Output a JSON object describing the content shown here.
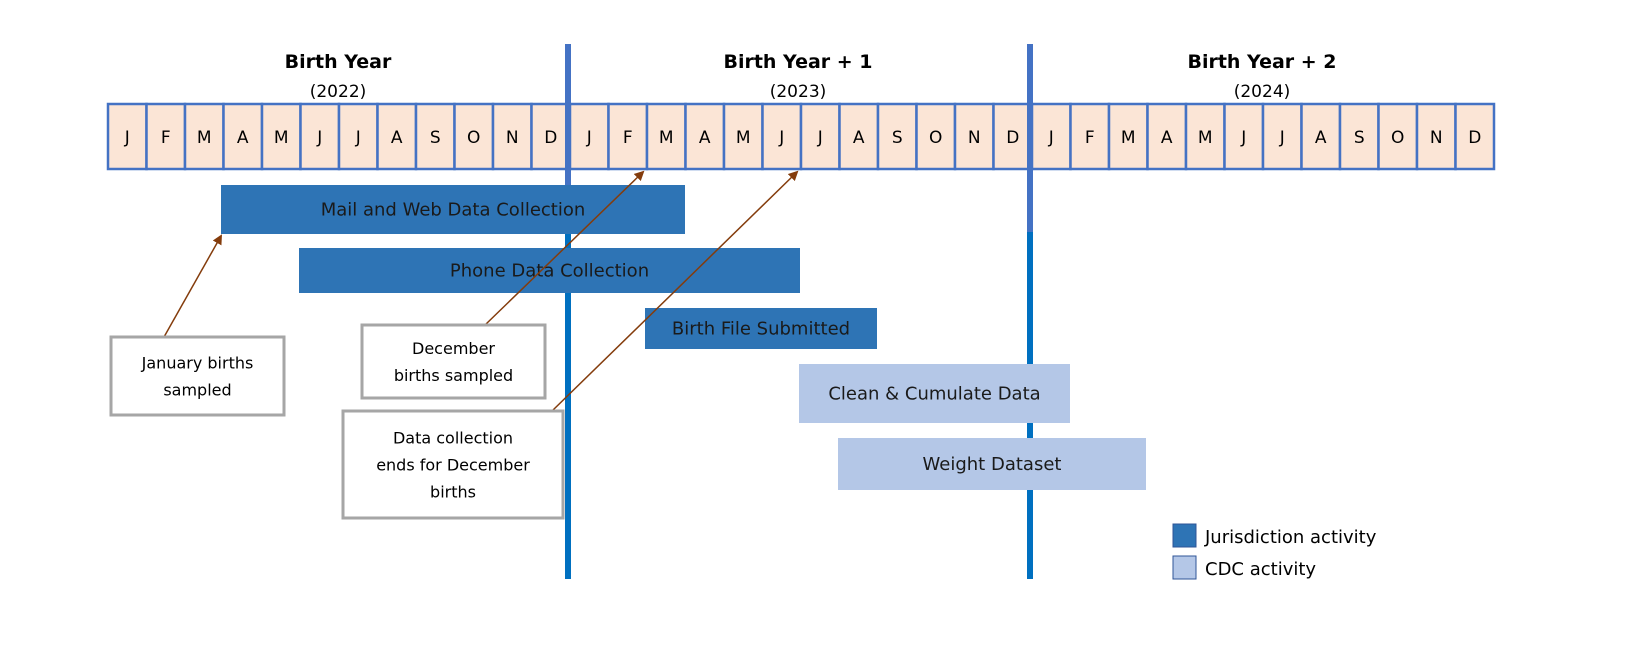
{
  "years": [
    {
      "title": "Birth Year",
      "year": "(2022)"
    },
    {
      "title": "Birth Year + 1",
      "year": "(2023)"
    },
    {
      "title": "Birth Year + 2",
      "year": "(2024)"
    }
  ],
  "months": [
    "J",
    "F",
    "M",
    "A",
    "M",
    "J",
    "J",
    "A",
    "S",
    "O",
    "N",
    "D"
  ],
  "bars": [
    {
      "label": "Mail and Web Data Collection",
      "type": "jurisdiction",
      "start_month": 3,
      "end_month": 15
    },
    {
      "label": "Phone Data Collection",
      "type": "jurisdiction",
      "start_month": 5,
      "end_month": 18
    },
    {
      "label": "Birth File Submitted",
      "type": "jurisdiction",
      "start_month": 14,
      "end_month": 20
    },
    {
      "label": "Clean & Cumulate Data",
      "type": "cdc",
      "start_month": 18,
      "end_month": 25
    },
    {
      "label": "Weight Dataset",
      "type": "cdc",
      "start_month": 19,
      "end_month": 27
    }
  ],
  "callouts": [
    {
      "lines": [
        "January births",
        "sampled"
      ]
    },
    {
      "lines": [
        "December",
        "births sampled"
      ]
    },
    {
      "lines": [
        "Data collection",
        "ends for December",
        "births"
      ]
    }
  ],
  "legend": [
    {
      "label": "Jurisdiction activity",
      "color": "#2e74b5"
    },
    {
      "label": "CDC activity",
      "color": "#b4c7e7"
    }
  ],
  "colors": {
    "month_fill": "#fbe5d6",
    "month_border": "#4472c4",
    "divider": "#0070c0",
    "arrow": "#843c0c",
    "callout_border": "#a6a6a6"
  }
}
